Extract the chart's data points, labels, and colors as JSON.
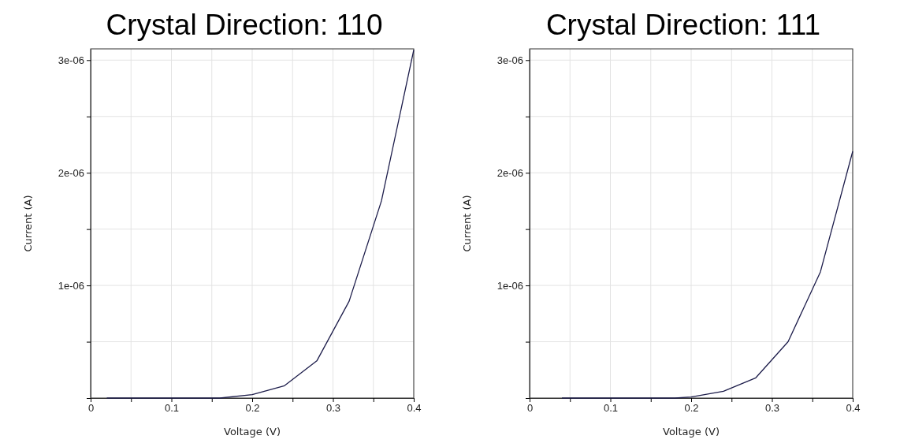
{
  "chart_data": [
    {
      "type": "line",
      "title": "Crystal Direction: 110",
      "xlabel": "Voltage (V)",
      "ylabel": "Current (A)",
      "grid": true,
      "marker": "none",
      "line_style": "solid",
      "xlim": [
        0,
        0.4
      ],
      "ylim": [
        0,
        3.1e-06
      ],
      "xticks": [
        0,
        {
          "value": 0.05,
          "label": null
        },
        0.1,
        {
          "value": 0.15,
          "label": null
        },
        0.2,
        {
          "value": 0.25,
          "label": null
        },
        0.3,
        {
          "value": 0.35,
          "label": null
        },
        0.4
      ],
      "yticks": [
        {
          "value": 0,
          "label": null
        },
        {
          "value": 5e-07,
          "label": null
        },
        {
          "value": 1e-06,
          "label": "1e-06"
        },
        {
          "value": 1.5e-06,
          "label": null
        },
        {
          "value": 2e-06,
          "label": "2e-06"
        },
        {
          "value": 2.5e-06,
          "label": null
        },
        {
          "value": 3e-06,
          "label": "3e-06"
        }
      ],
      "series": [
        {
          "color": "#1c1c4a",
          "x": [
            0.02,
            0.16,
            0.2,
            0.24,
            0.28,
            0.32,
            0.36,
            0.4
          ],
          "values": [
            0,
            0,
            3e-08,
            1.1e-07,
            3.3e-07,
            8.6e-07,
            1.75e-06,
            3.09e-06
          ]
        }
      ]
    },
    {
      "type": "line",
      "title": "Crystal Direction: 111",
      "xlabel": "Voltage (V)",
      "ylabel": "Current (A)",
      "grid": true,
      "marker": "none",
      "line_style": "solid",
      "xlim": [
        0,
        0.4
      ],
      "ylim": [
        0,
        3.1e-06
      ],
      "xticks": [
        0,
        {
          "value": 0.05,
          "label": null
        },
        0.1,
        {
          "value": 0.15,
          "label": null
        },
        0.2,
        {
          "value": 0.25,
          "label": null
        },
        0.3,
        {
          "value": 0.35,
          "label": null
        },
        0.4
      ],
      "yticks": [
        {
          "value": 0,
          "label": null
        },
        {
          "value": 5e-07,
          "label": null
        },
        {
          "value": 1e-06,
          "label": "1e-06"
        },
        {
          "value": 1.5e-06,
          "label": null
        },
        {
          "value": 2e-06,
          "label": "2e-06"
        },
        {
          "value": 2.5e-06,
          "label": null
        },
        {
          "value": 3e-06,
          "label": "3e-06"
        }
      ],
      "series": [
        {
          "color": "#1c1c4a",
          "x": [
            0.04,
            0.18,
            0.2,
            0.24,
            0.28,
            0.32,
            0.36,
            0.4
          ],
          "values": [
            0,
            0,
            1e-08,
            6e-08,
            1.8e-07,
            5e-07,
            1.12e-06,
            2.19e-06
          ]
        }
      ]
    }
  ]
}
